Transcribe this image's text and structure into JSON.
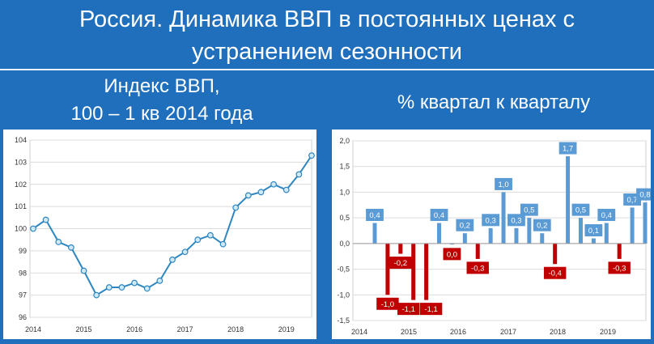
{
  "header": {
    "title_line1": "Россия. Динамика ВВП в постоянных ценах с",
    "title_line2": "устранением сезонности"
  },
  "left": {
    "subtitle_line1": "Индекс ВВП,",
    "subtitle_line2": "100 – 1 кв 2014 года"
  },
  "right": {
    "subtitle": "% квартал к кварталу"
  },
  "chart_data": [
    {
      "type": "line",
      "title": "Индекс ВВП, 100 – 1 кв 2014 года",
      "x_labels": [
        "2014",
        "2015",
        "2016",
        "2017",
        "2018",
        "2019"
      ],
      "ylim": [
        96,
        104
      ],
      "yticks": [
        "96",
        "97",
        "98",
        "99",
        "100",
        "101",
        "102",
        "103",
        "104"
      ],
      "grid": true,
      "color": "#2e86c1",
      "marker_fill": "#cfeaf6",
      "values": [
        100.0,
        100.4,
        99.4,
        99.15,
        98.1,
        97.0,
        97.35,
        97.35,
        97.55,
        97.3,
        97.65,
        98.6,
        98.95,
        99.5,
        99.7,
        99.3,
        100.95,
        101.5,
        101.65,
        102.0,
        101.75,
        102.45,
        103.3
      ]
    },
    {
      "type": "bar",
      "title": "% квартал к кварталу",
      "x_labels": [
        "2014",
        "2015",
        "2016",
        "2017",
        "2018",
        "2019"
      ],
      "ylim": [
        -1.5,
        2.0
      ],
      "yticks": [
        "-1,5",
        "-1,0",
        "-0,5",
        "0,0",
        "0,5",
        "1,0",
        "1,5",
        "2,0"
      ],
      "grid": true,
      "positive_color": "#5b9bd5",
      "negative_color": "#c00000",
      "values": [
        0.4,
        -1.0,
        -0.2,
        -1.1,
        -1.1,
        0.4,
        0.0,
        0.2,
        -0.3,
        0.3,
        1.0,
        0.3,
        0.5,
        0.2,
        -0.4,
        1.7,
        0.5,
        0.1,
        0.4,
        -0.3,
        0.7,
        0.8
      ],
      "data_labels": [
        "0,4",
        "-1,0",
        "-0,2",
        "-1,1",
        "-1,1",
        "0,4",
        "0,0",
        "0,2",
        "-0,3",
        "0,3",
        "1,0",
        "0,3",
        "0,5",
        "0,2",
        "-0,4",
        "1,7",
        "0,5",
        "0,1",
        "0,4",
        "-0,3",
        "0,7",
        "0,8"
      ]
    }
  ]
}
